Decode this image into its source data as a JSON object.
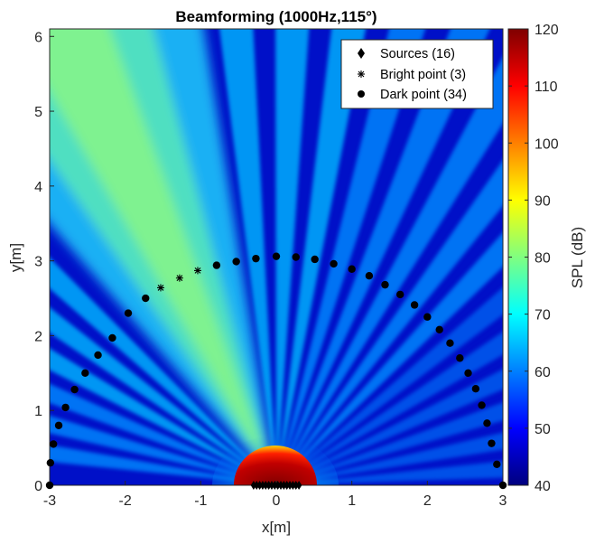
{
  "chart_data": {
    "type": "heatmap",
    "title": "Beamforming (1000Hz,115°)",
    "xlabel": "x[m]",
    "ylabel": "y[m]",
    "colorbar_label": "SPL (dB)",
    "xlim": [
      -3,
      3
    ],
    "ylim": [
      0,
      6.1
    ],
    "clim": [
      40,
      120
    ],
    "colormap": "jet",
    "x_ticks": [
      "-3",
      "-2",
      "-1",
      "0",
      "1",
      "2",
      "3"
    ],
    "x_tick_values": [
      -3,
      -2,
      -1,
      0,
      1,
      2,
      3
    ],
    "y_ticks": [
      "0",
      "1",
      "2",
      "3",
      "4",
      "5",
      "6"
    ],
    "y_tick_values": [
      0,
      1,
      2,
      3,
      4,
      5,
      6
    ],
    "colorbar_ticks": [
      "40",
      "50",
      "60",
      "70",
      "80",
      "90",
      "100",
      "110",
      "120"
    ],
    "colorbar_tick_values": [
      40,
      50,
      60,
      70,
      80,
      90,
      100,
      110,
      120
    ],
    "field": {
      "frequency_hz": 1000,
      "steer_angle_deg": 115,
      "description_values": {
        "near_source_level_db": 120,
        "main_lobe_level_db": 78,
        "background_level_db": 42
      }
    },
    "legend": {
      "placement": "top-right",
      "entries": [
        {
          "label": "Sources (16)",
          "marker": "diamond"
        },
        {
          "label": "Bright point (3)",
          "marker": "asterisk"
        },
        {
          "label": "Dark point (34)",
          "marker": "circle"
        }
      ]
    },
    "series": [
      {
        "name": "Sources (16)",
        "marker": "diamond",
        "count": 16,
        "y": 0,
        "x": [
          -0.3,
          -0.26,
          -0.22,
          -0.18,
          -0.14,
          -0.1,
          -0.06,
          -0.02,
          0.02,
          0.06,
          0.1,
          0.14,
          0.18,
          0.22,
          0.26,
          0.3
        ]
      },
      {
        "name": "Bright point (3)",
        "marker": "asterisk",
        "count": 3,
        "x": [
          -1.53,
          -1.28,
          -1.04
        ],
        "y": [
          2.64,
          2.77,
          2.87
        ]
      },
      {
        "name": "Dark point (34)",
        "marker": "circle",
        "count": 34,
        "x": [
          -3.0,
          -2.99,
          -2.95,
          -2.88,
          -2.79,
          -2.67,
          -2.53,
          -2.36,
          -2.17,
          -1.96,
          -1.73,
          -0.79,
          -0.53,
          -0.27,
          0.0,
          0.26,
          0.51,
          0.76,
          1.0,
          1.23,
          1.44,
          1.64,
          1.83,
          2.0,
          2.16,
          2.3,
          2.43,
          2.54,
          2.64,
          2.72,
          2.79,
          2.85,
          2.92,
          3.0
        ],
        "y": [
          0.0,
          0.3,
          0.55,
          0.8,
          1.04,
          1.28,
          1.5,
          1.74,
          1.97,
          2.3,
          2.5,
          2.94,
          2.99,
          3.03,
          3.06,
          3.05,
          3.02,
          2.96,
          2.89,
          2.8,
          2.68,
          2.55,
          2.41,
          2.25,
          2.08,
          1.9,
          1.7,
          1.5,
          1.29,
          1.07,
          0.83,
          0.56,
          0.28,
          0.0
        ]
      }
    ]
  }
}
